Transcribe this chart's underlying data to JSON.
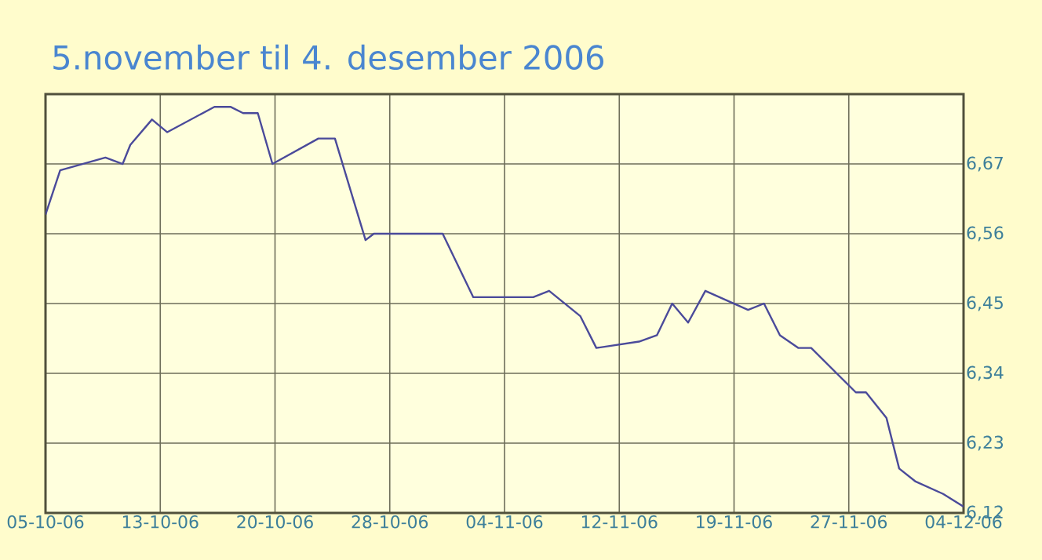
{
  "chart_data": {
    "type": "line",
    "title": "5.november til 4. desember 2006",
    "x": [
      "2006-10-05T00:00",
      "2006-10-05T23:00",
      "2006-10-08T22:00",
      "2006-10-10T01:00",
      "2006-10-10T13:00",
      "2006-10-11T23:00",
      "2006-10-12T23:00",
      "2006-10-16T01:00",
      "2006-10-17T02:00",
      "2006-10-17T22:00",
      "2006-10-18T21:00",
      "2006-10-19T20:00",
      "2006-10-22T20:00",
      "2006-10-23T22:00",
      "2006-10-25T22:00",
      "2006-10-26T11:00",
      "2006-10-30T07:00",
      "2006-10-30T23:00",
      "2006-11-01T23:00",
      "2006-11-05T21:00",
      "2006-11-06T22:00",
      "2006-11-08T23:00",
      "2006-11-10T00:00",
      "2006-11-12T19:00",
      "2006-11-13T23:00",
      "2006-11-14T23:00",
      "2006-11-16T00:00",
      "2006-11-17T03:00",
      "2006-11-19T22:00",
      "2006-11-20T23:00",
      "2006-11-22T00:00",
      "2006-11-23T05:00",
      "2006-11-24T01:00",
      "2006-11-26T23:00",
      "2006-11-27T15:00",
      "2006-11-28T07:00",
      "2006-11-28T23:00",
      "2006-11-29T19:00",
      "2006-11-30T20:00",
      "2006-12-02T16:00",
      "2006-12-04T00:00"
    ],
    "series": [
      {
        "color": "#4a4a9a",
        "values": [
          6.59,
          6.66,
          6.68,
          6.67,
          6.7,
          6.74,
          6.72,
          6.76,
          6.76,
          6.75,
          6.75,
          6.67,
          6.71,
          6.71,
          6.55,
          6.56,
          6.56,
          6.56,
          6.46,
          6.46,
          6.47,
          6.43,
          6.38,
          6.39,
          6.4,
          6.45,
          6.42,
          6.47,
          6.44,
          6.45,
          6.4,
          6.38,
          6.38,
          6.31,
          6.31,
          6.29,
          6.27,
          6.19,
          6.17,
          6.15,
          6.13
        ]
      }
    ],
    "xlim": [
      "2006-10-05T00:00",
      "2006-12-04T00:00"
    ],
    "xticks": [
      {
        "value": "2006-10-05T00:00",
        "label": "05-10-06"
      },
      {
        "value": "2006-10-12T12:00",
        "label": "13-10-06"
      },
      {
        "value": "2006-10-20T00:00",
        "label": "20-10-06"
      },
      {
        "value": "2006-10-27T12:00",
        "label": "28-10-06"
      },
      {
        "value": "2006-11-04T00:00",
        "label": "04-11-06"
      },
      {
        "value": "2006-11-11T12:00",
        "label": "12-11-06"
      },
      {
        "value": "2006-11-19T00:00",
        "label": "19-11-06"
      },
      {
        "value": "2006-11-26T12:00",
        "label": "27-11-06"
      },
      {
        "value": "2006-12-04T00:00",
        "label": "04-12-06"
      }
    ],
    "ylim": [
      6.12,
      6.78
    ],
    "yticks": [
      {
        "value": 6.12,
        "label": "6,12"
      },
      {
        "value": 6.23,
        "label": "6,23"
      },
      {
        "value": 6.34,
        "label": "6,34"
      },
      {
        "value": 6.45,
        "label": "6,45"
      },
      {
        "value": 6.56,
        "label": "6,56"
      },
      {
        "value": 6.67,
        "label": "6,67"
      },
      {
        "value": 6.78,
        "label": null
      }
    ],
    "grid": true,
    "marker": "none",
    "line_style": "solid"
  }
}
